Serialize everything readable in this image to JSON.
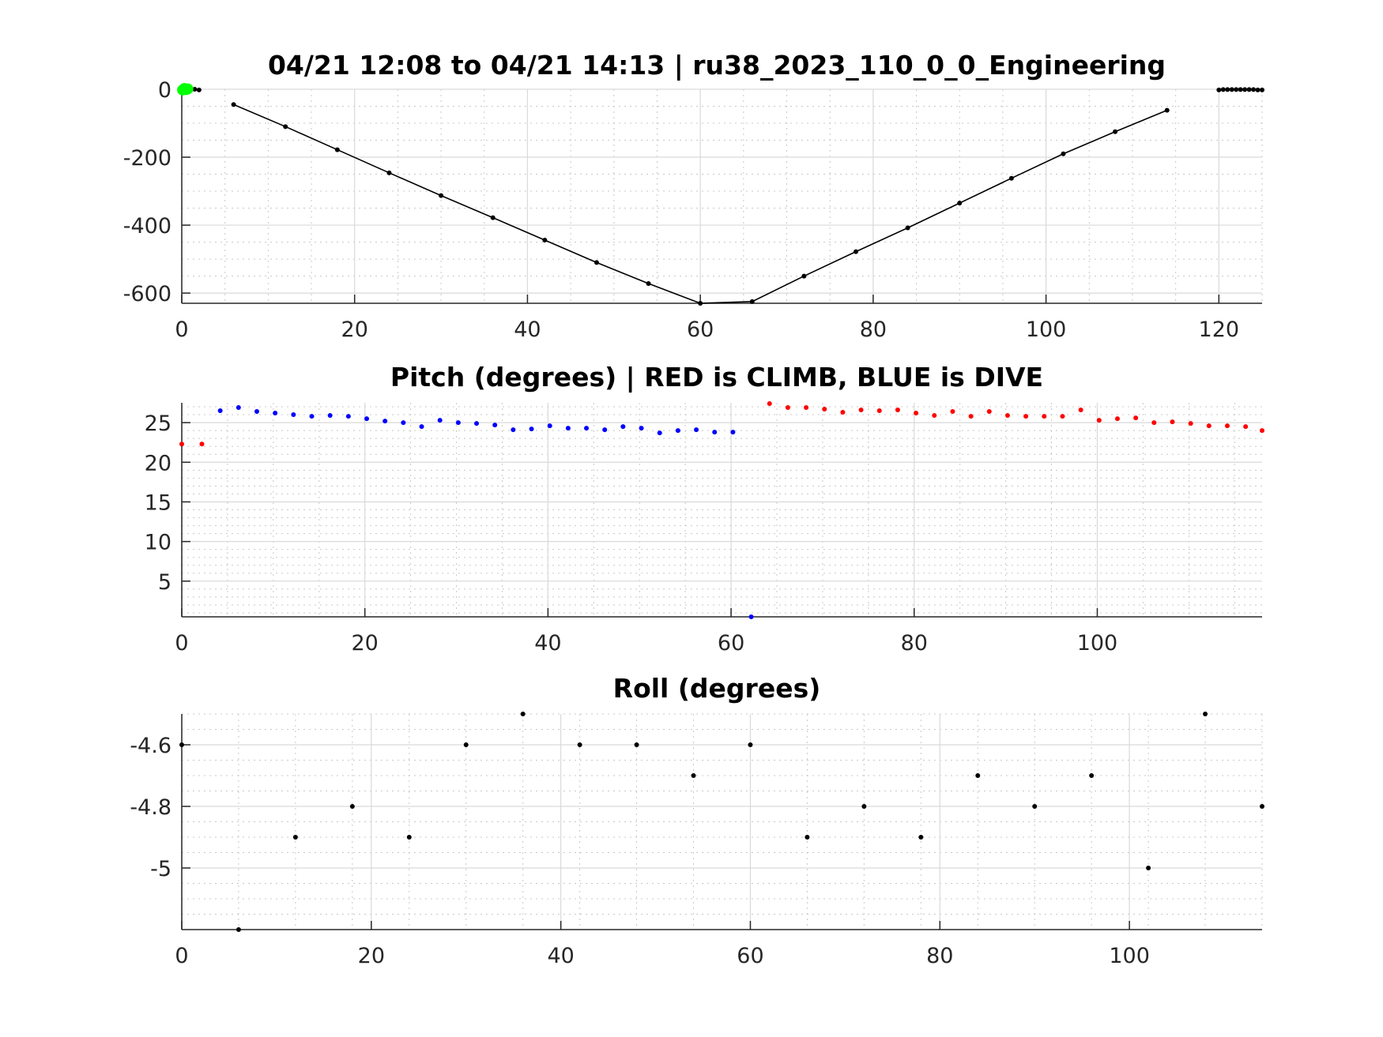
{
  "chart_data": [
    {
      "type": "line",
      "title": "04/21 12:08 to 04/21 14:13 | ru38_2023_110_0_0_Engineering",
      "xlabel": "",
      "ylabel": "",
      "xlim": [
        0,
        125
      ],
      "ylim": [
        -630,
        0
      ],
      "xticks": [
        0,
        20,
        40,
        60,
        80,
        100,
        120
      ],
      "yticks": [
        0,
        -200,
        -400,
        -600
      ],
      "grid": true,
      "colors": {
        "line": "#000000",
        "marker": "#000000",
        "start": "#00ff00"
      },
      "series": [
        {
          "x": [
            0.5,
            1.0,
            1.5,
            2.0,
            6,
            12,
            18,
            24,
            30,
            36,
            42,
            48,
            54,
            60,
            66,
            72,
            78,
            84,
            90,
            96,
            102,
            108,
            114,
            120,
            120.5,
            121,
            121.5,
            122,
            122.5,
            123,
            123.5,
            124,
            124.5,
            125
          ],
          "y": [
            0,
            0,
            0,
            -2,
            -45,
            -110,
            -178,
            -246,
            -313,
            -378,
            -444,
            -510,
            -572,
            -630,
            -625,
            -550,
            -478,
            -408,
            -335,
            -262,
            -190,
            -125,
            -62,
            -2,
            -1,
            -1,
            -1,
            -1,
            -1,
            -1,
            -1,
            -1,
            -2,
            -2
          ]
        }
      ],
      "line_segment_x": [
        6,
        114
      ],
      "start_markers": {
        "x": [
          0.1,
          0.3,
          0.5,
          0.7
        ],
        "y": [
          -2,
          2,
          -1,
          1
        ]
      }
    },
    {
      "type": "scatter",
      "title": "Pitch (degrees) | RED is CLIMB, BLUE is DIVE",
      "xlabel": "",
      "ylabel": "",
      "xlim": [
        0,
        118
      ],
      "ylim": [
        0.5,
        27.5
      ],
      "xticks": [
        0,
        20,
        40,
        60,
        80,
        100
      ],
      "yticks": [
        5,
        10,
        15,
        20,
        25
      ],
      "grid": true,
      "colors": {
        "climb": "#ff0000",
        "dive": "#0000ff"
      },
      "series": [
        {
          "label": "CLIMB",
          "x": [
            0,
            2.2
          ],
          "y": [
            22.3,
            22.3
          ]
        },
        {
          "label": "DIVE",
          "x": [
            4.2,
            6.2,
            8.2,
            10.2,
            12.2,
            14.2,
            16.2,
            18.2,
            20.2,
            22.2,
            24.2,
            26.2,
            28.2,
            30.2,
            32.2,
            34.2,
            36.2,
            38.2,
            40.2,
            42.2,
            44.2,
            46.2,
            48.2,
            50.2,
            52.2,
            54.2,
            56.2,
            58.2,
            60.2,
            62.2
          ],
          "y": [
            26.5,
            26.9,
            26.4,
            26.2,
            26.0,
            25.8,
            25.9,
            25.8,
            25.5,
            25.2,
            25.0,
            24.5,
            25.3,
            25.0,
            24.9,
            24.7,
            24.1,
            24.2,
            24.6,
            24.3,
            24.3,
            24.1,
            24.5,
            24.3,
            23.7,
            24.0,
            24.1,
            23.8,
            23.8,
            0.5
          ]
        },
        {
          "label": "CLIMB",
          "x": [
            64.2,
            66.2,
            68.2,
            70.2,
            72.2,
            74.2,
            76.2,
            78.2,
            80.2,
            82.2,
            84.2,
            86.2,
            88.2,
            90.2,
            92.2,
            94.2,
            96.2,
            98.2,
            100.2,
            102.2,
            104.2,
            106.2,
            108.2,
            110.2,
            112.2,
            114.2,
            116.2,
            118
          ],
          "y": [
            27.4,
            26.9,
            26.9,
            26.7,
            26.3,
            26.6,
            26.5,
            26.6,
            26.2,
            25.9,
            26.4,
            25.8,
            26.4,
            25.9,
            25.8,
            25.8,
            25.8,
            26.6,
            25.3,
            25.5,
            25.6,
            25.0,
            25.1,
            24.9,
            24.6,
            24.6,
            24.5,
            24.0
          ]
        }
      ]
    },
    {
      "type": "scatter",
      "title": "Roll (degrees)",
      "xlabel": "",
      "ylabel": "",
      "xlim": [
        0,
        114
      ],
      "ylim": [
        -5.2,
        -4.5
      ],
      "xticks": [
        0,
        20,
        40,
        60,
        80,
        100
      ],
      "yticks": [
        -4.6,
        -4.8,
        -5
      ],
      "ytick_labels": [
        "-4.6",
        "-4.8",
        "-5"
      ],
      "grid": true,
      "colors": {
        "marker": "#000000"
      },
      "series": [
        {
          "x": [
            0,
            6,
            12,
            18,
            24,
            30,
            36,
            42,
            48,
            54,
            60,
            66,
            72,
            78,
            84,
            90,
            96,
            102,
            108,
            114
          ],
          "y": [
            -4.6,
            -5.2,
            -4.9,
            -4.8,
            -4.9,
            -4.6,
            -4.5,
            -4.6,
            -4.6,
            -4.7,
            -4.6,
            -4.9,
            -4.8,
            -4.9,
            -4.7,
            -4.8,
            -4.7,
            -5.0,
            -4.5,
            -4.8
          ]
        }
      ]
    }
  ]
}
